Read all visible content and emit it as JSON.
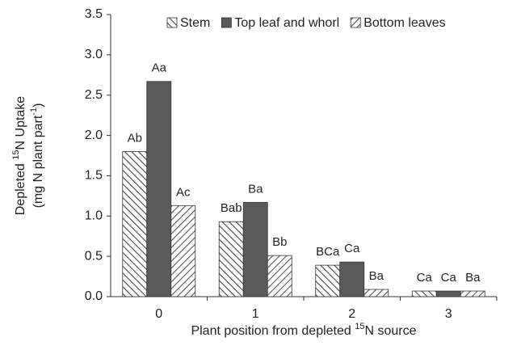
{
  "chart_data": {
    "type": "bar",
    "ylabel": [
      [
        "Depleted ",
        "15",
        "N Uptake"
      ],
      [
        "(mg N plant part",
        "-1",
        ")"
      ]
    ],
    "xlabel": [
      "Plant position from depleted ",
      "15",
      "N source"
    ],
    "categories": [
      "0",
      "1",
      "2",
      "3"
    ],
    "series": [
      {
        "name": "Stem",
        "color": "#444444",
        "pattern": "hatch-back",
        "values": [
          1.8,
          0.93,
          0.39,
          0.07
        ],
        "annotations": [
          "Ab",
          "Bab",
          "BCa",
          "Ca"
        ]
      },
      {
        "name": "Top leaf and whorl",
        "color": "#5a5a5a",
        "pattern": "solid",
        "values": [
          2.67,
          1.17,
          0.43,
          0.07
        ],
        "annotations": [
          "Aa",
          "Ba",
          "Ca",
          "Ca"
        ]
      },
      {
        "name": "Bottom leaves",
        "color": "#555555",
        "pattern": "hatch-forward",
        "values": [
          1.13,
          0.51,
          0.09,
          0.07
        ],
        "annotations": [
          "Ac",
          "Bb",
          "Ba",
          "Ba"
        ]
      }
    ],
    "ylim": [
      0,
      3.5
    ],
    "yticks": [
      {
        "value": 0,
        "label": "0.0"
      },
      0.5,
      {
        "value": 1,
        "label": "1.0"
      },
      1.5,
      {
        "value": 2,
        "label": "2.0"
      },
      2.5,
      {
        "value": 3,
        "label": "3.0"
      },
      3.5
    ],
    "legend": "top"
  }
}
